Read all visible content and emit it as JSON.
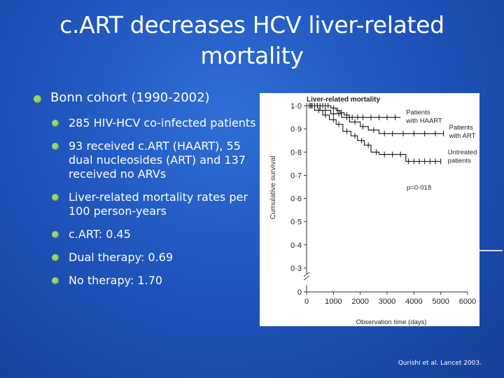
{
  "slide": {
    "title_line1": "c.ART decreases HCV liver-related",
    "title_line2": "mortality",
    "citation": "Qurishi et al. Lancet 2003."
  },
  "bullets": {
    "main": "Bonn cohort (1990-2002)",
    "subs": [
      "285 HIV-HCV co-infected patients",
      "93 received c.ART (HAART), 55 dual nucleosides (ART) and 137 received no ARVs",
      "Liver-related mortality rates per 100 person-years",
      "c.ART: 0.45",
      "Dual therapy: 0.69",
      "No therapy: 1.70"
    ]
  },
  "colors": {
    "bullet": "#9bd86a",
    "background": "#1f55bd"
  },
  "chart_data": {
    "type": "line",
    "step": true,
    "title": "Liver-related mortality",
    "xlabel": "Observation time (days)",
    "ylabel": "Cumulative survival",
    "x_ticks": [
      0,
      1000,
      2000,
      3000,
      4000,
      5000,
      6000
    ],
    "x_tick_labels": [
      "0",
      "1000",
      "2000",
      "3000",
      "4000",
      "5000",
      "6000"
    ],
    "y_ticks": [
      0,
      0.3,
      0.4,
      0.5,
      0.6,
      0.7,
      0.8,
      0.9,
      1.0
    ],
    "y_tick_labels": [
      "0",
      "0·3",
      "0·4",
      "0·5",
      "0·6",
      "0·7",
      "0·8",
      "0·9",
      "1·0"
    ],
    "axis_break": true,
    "p_value": "p=0·018",
    "series": [
      {
        "name": "Patients with HAART",
        "label_lines": [
          "Patients",
          "with HAART"
        ],
        "points": [
          [
            0,
            1.0
          ],
          [
            900,
            0.99
          ],
          [
            1100,
            0.98
          ],
          [
            1250,
            0.97
          ],
          [
            1400,
            0.96
          ],
          [
            1600,
            0.95
          ],
          [
            3500,
            0.95
          ]
        ],
        "censor_x": [
          100,
          200,
          300,
          400,
          500,
          600,
          700,
          800,
          1000,
          1150,
          1300,
          1500,
          1700,
          1900,
          2100,
          2400,
          2700,
          3000,
          3300
        ]
      },
      {
        "name": "Patients with ART",
        "label_lines": [
          "Patients",
          "with ART"
        ],
        "points": [
          [
            0,
            1.0
          ],
          [
            500,
            0.98
          ],
          [
            900,
            0.965
          ],
          [
            1300,
            0.95
          ],
          [
            1600,
            0.93
          ],
          [
            2000,
            0.91
          ],
          [
            2300,
            0.895
          ],
          [
            2700,
            0.88
          ],
          [
            5100,
            0.88
          ]
        ],
        "censor_x": [
          200,
          400,
          700,
          1000,
          1200,
          1500,
          1800,
          2100,
          2500,
          2900,
          3200,
          3600,
          4000,
          4400,
          4800,
          5100
        ]
      },
      {
        "name": "Untreated patients",
        "label_lines": [
          "Untreated",
          "patients"
        ],
        "points": [
          [
            0,
            1.0
          ],
          [
            300,
            0.98
          ],
          [
            600,
            0.96
          ],
          [
            850,
            0.94
          ],
          [
            1100,
            0.92
          ],
          [
            1350,
            0.89
          ],
          [
            1650,
            0.87
          ],
          [
            1900,
            0.85
          ],
          [
            2150,
            0.83
          ],
          [
            2400,
            0.8
          ],
          [
            2700,
            0.79
          ],
          [
            3700,
            0.76
          ],
          [
            5000,
            0.76
          ]
        ],
        "censor_x": [
          150,
          450,
          700,
          1000,
          1200,
          1500,
          1800,
          2050,
          2300,
          2600,
          2900,
          3200,
          3500,
          3800,
          4000,
          4200,
          4400,
          4600,
          4800,
          5000
        ]
      }
    ]
  }
}
